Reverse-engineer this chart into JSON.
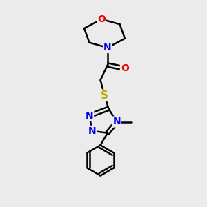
{
  "bg_color": "#ebebeb",
  "atom_colors": {
    "C": "#000000",
    "N": "#0000ee",
    "O": "#ee0000",
    "S": "#bbaa00",
    "H": "#000000"
  },
  "bond_color": "#000000",
  "bond_width": 1.8,
  "font_size": 10,
  "fig_width": 3.0,
  "fig_height": 3.0,
  "dpi": 100
}
